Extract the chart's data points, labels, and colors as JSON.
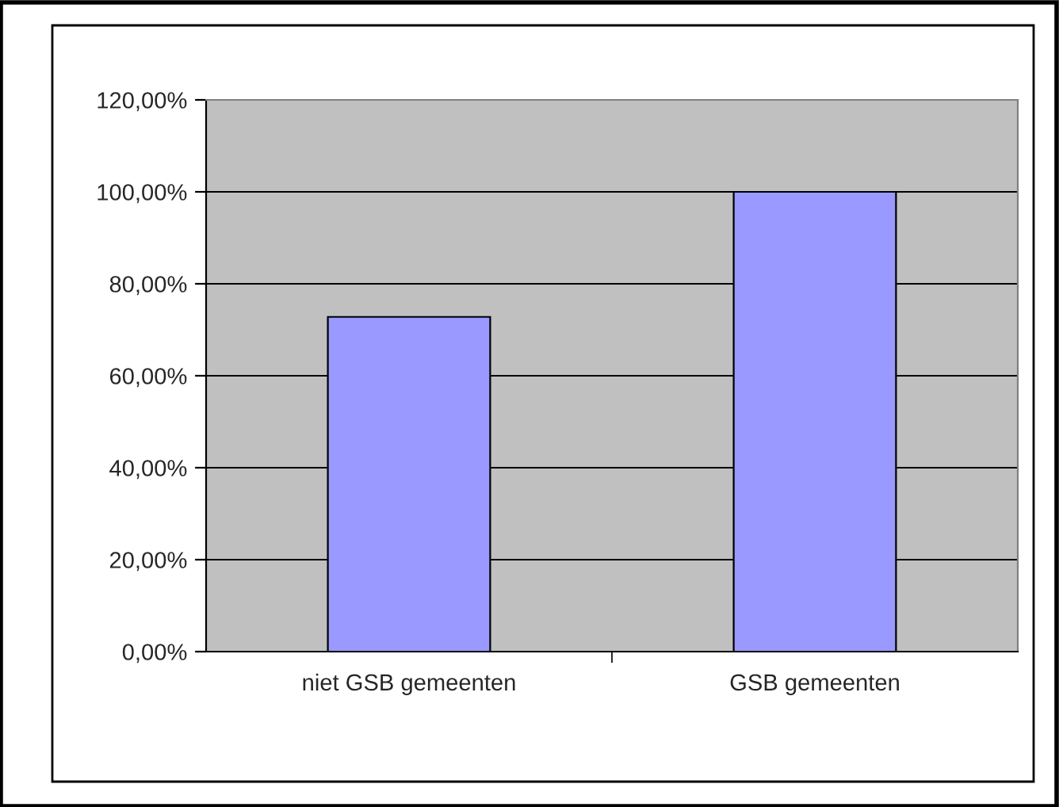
{
  "chart_data": {
    "type": "bar",
    "categories": [
      "niet GSB gemeenten",
      "GSB gemeenten"
    ],
    "values": [
      72.8,
      100
    ],
    "color": "#9999ff",
    "ylim": [
      0,
      120
    ],
    "yticks": [
      {
        "value": 0,
        "label": "0,00%"
      },
      {
        "value": 20,
        "label": "20,00%"
      },
      {
        "value": 40,
        "label": "40,00%"
      },
      {
        "value": 60,
        "label": "60,00%"
      },
      {
        "value": 80,
        "label": "80,00%"
      },
      {
        "value": 100,
        "label": "100,00%"
      },
      {
        "value": 120,
        "label": "120,00%"
      }
    ],
    "grid": "y"
  }
}
